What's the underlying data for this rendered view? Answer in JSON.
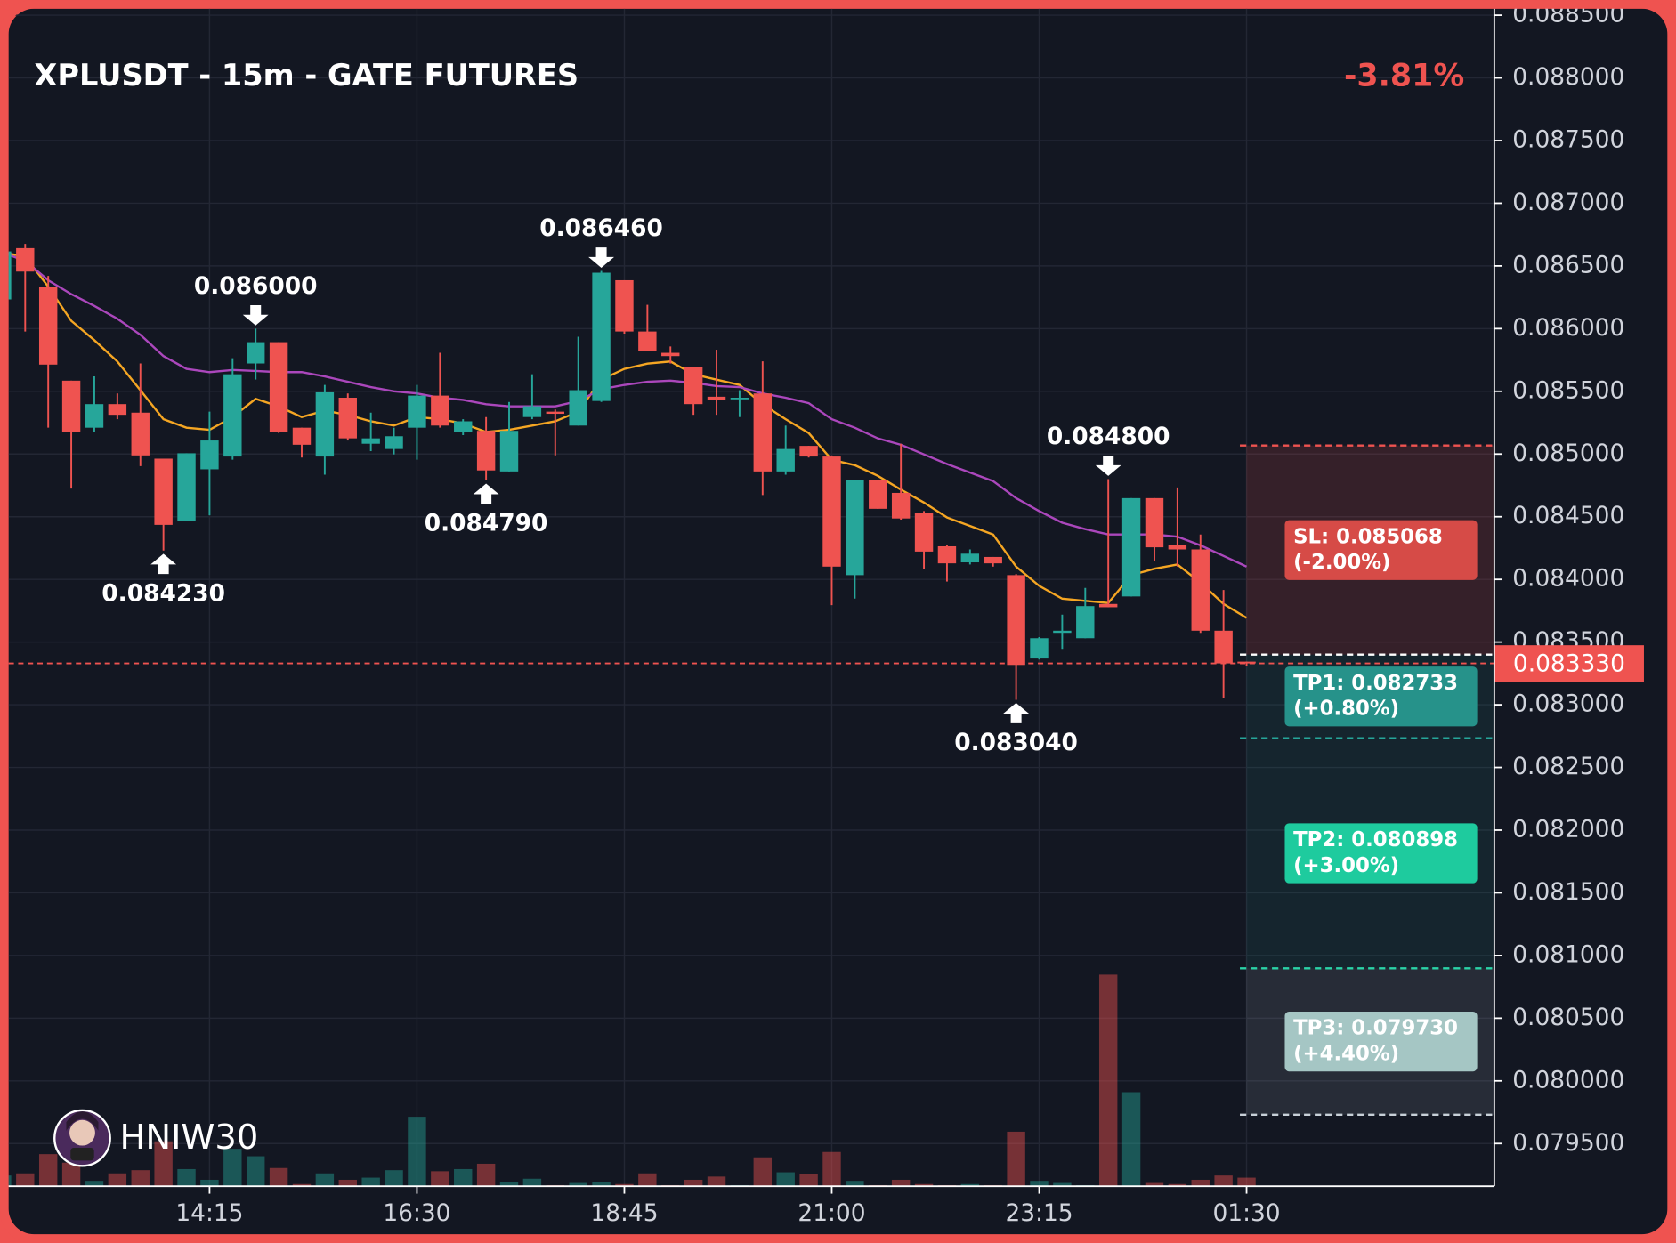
{
  "chart_data": {
    "type": "candlestick",
    "title": "XPLUSDT - 15m - GATE FUTURES",
    "change_label": "-3.81%",
    "watermark": "HNIW30",
    "grid": true,
    "colors": {
      "up": "#26a69a",
      "down": "#ef5350"
    },
    "categories": [
      null,
      null,
      null,
      null,
      null,
      null,
      null,
      null,
      null,
      "14:15",
      null,
      null,
      null,
      null,
      null,
      null,
      null,
      null,
      "16:30",
      null,
      null,
      null,
      null,
      null,
      null,
      null,
      null,
      "18:45",
      null,
      null,
      null,
      null,
      null,
      null,
      null,
      null,
      "21:00",
      null,
      null,
      null,
      null,
      null,
      null,
      null,
      null,
      "23:15",
      null,
      null,
      null,
      null,
      null,
      null,
      null,
      null,
      "01:30"
    ],
    "open": [
      0.086233,
      0.086642,
      0.086335,
      0.085585,
      0.08521,
      0.085398,
      0.08533,
      0.084963,
      0.084469,
      0.084878,
      0.08498,
      0.085722,
      0.085892,
      0.08521,
      0.08498,
      0.085449,
      0.085082,
      0.08504,
      0.08521,
      0.085466,
      0.085176,
      0.085185,
      0.084861,
      0.085295,
      0.085338,
      0.085227,
      0.085423,
      0.086386,
      0.085977,
      0.085807,
      0.085696,
      0.085457,
      0.08544,
      0.085483,
      0.084861,
      0.085065,
      0.08498,
      0.084034,
      0.08479,
      0.08469,
      0.084528,
      0.084264,
      0.084136,
      0.084179,
      0.084034,
      0.083369,
      0.083574,
      0.083531,
      0.083804,
      0.083864,
      0.084648,
      0.084273,
      0.084239,
      0.083591,
      0.083344
    ],
    "high": [
      0.086659,
      0.086676,
      0.08642,
      0.085585,
      0.085619,
      0.085483,
      0.085722,
      0.084963,
      0.085006,
      0.085338,
      0.085764,
      0.086,
      0.085892,
      0.08521,
      0.085551,
      0.085483,
      0.08533,
      0.08521,
      0.085551,
      0.085807,
      0.085278,
      0.085295,
      0.085415,
      0.085636,
      0.085355,
      0.085935,
      0.08646,
      0.086386,
      0.08619,
      0.085858,
      0.085696,
      0.085832,
      0.085509,
      0.085739,
      0.085227,
      0.085065,
      0.084989,
      0.084795,
      0.084795,
      0.085082,
      0.084545,
      0.084273,
      0.084239,
      0.084179,
      0.084043,
      0.08354,
      0.083719,
      0.083932,
      0.0848,
      0.084648,
      0.084648,
      0.084733,
      0.084358,
      0.083915,
      0.083344
    ],
    "low": [
      0.086233,
      0.085977,
      0.08521,
      0.084724,
      0.085176,
      0.085278,
      0.084903,
      0.08423,
      0.084469,
      0.084511,
      0.084955,
      0.085594,
      0.085168,
      0.084972,
      0.084835,
      0.085108,
      0.085023,
      0.084997,
      0.084955,
      0.08521,
      0.085151,
      0.08479,
      0.084861,
      0.085278,
      0.084989,
      0.085227,
      0.085415,
      0.08596,
      0.085824,
      0.085722,
      0.085313,
      0.085313,
      0.085295,
      0.084673,
      0.084835,
      0.084972,
      0.083795,
      0.083847,
      0.084563,
      0.084477,
      0.084085,
      0.083983,
      0.084119,
      0.084102,
      0.08304,
      0.083361,
      0.083446,
      0.083531,
      0.083778,
      0.083864,
      0.084145,
      0.084102,
      0.083574,
      0.08305,
      0.08331
    ],
    "close": [
      0.086616,
      0.086455,
      0.085713,
      0.085176,
      0.085398,
      0.085313,
      0.084989,
      0.084435,
      0.085006,
      0.085108,
      0.085636,
      0.085892,
      0.085176,
      0.085074,
      0.085492,
      0.085125,
      0.085125,
      0.085142,
      0.085466,
      0.085227,
      0.085261,
      0.084869,
      0.085185,
      0.085381,
      0.085321,
      0.085509,
      0.086446,
      0.085977,
      0.085824,
      0.085781,
      0.085398,
      0.085432,
      0.085449,
      0.084861,
      0.08504,
      0.08498,
      0.084102,
      0.08479,
      0.084563,
      0.084486,
      0.084222,
      0.084128,
      0.084205,
      0.084128,
      0.083318,
      0.083531,
      0.083591,
      0.083787,
      0.083778,
      0.084648,
      0.084256,
      0.084239,
      0.083591,
      0.08333,
      0.08333
    ],
    "volume": [
      10,
      12,
      30,
      22,
      5,
      12,
      15,
      42,
      16,
      6,
      35,
      28,
      17,
      2,
      12,
      6,
      8,
      15,
      65,
      14,
      16,
      21,
      4,
      7,
      1,
      3,
      4,
      2,
      12,
      1,
      6,
      9,
      1,
      27,
      13,
      11,
      32,
      5,
      1,
      6,
      2,
      1,
      2,
      1,
      51,
      5,
      3,
      1,
      198,
      88,
      3,
      2,
      6,
      10,
      8
    ],
    "moving_averages": [
      {
        "color": "#f5a623",
        "values": [
          0.086608,
          0.086574,
          0.086335,
          0.086062,
          0.085908,
          0.085738,
          0.085508,
          0.085278,
          0.08521,
          0.085193,
          0.085295,
          0.08544,
          0.08538,
          0.085295,
          0.085346,
          0.085312,
          0.085261,
          0.085227,
          0.085295,
          0.085278,
          0.085244,
          0.085176,
          0.085193,
          0.085227,
          0.085261,
          0.085338,
          0.085593,
          0.085679,
          0.085721,
          0.085738,
          0.085636,
          0.085593,
          0.085551,
          0.085397,
          0.085278,
          0.085167,
          0.084954,
          0.084911,
          0.084826,
          0.084716,
          0.084613,
          0.084494,
          0.084426,
          0.084358,
          0.084102,
          0.083949,
          0.083846,
          0.083829,
          0.083812,
          0.084034,
          0.084085,
          0.084119,
          0.083974,
          0.083804,
          0.083693
        ]
      },
      {
        "color": "#ab47bc",
        "values": [
          0.086608,
          0.08654,
          0.086386,
          0.086275,
          0.086181,
          0.086079,
          0.085951,
          0.085781,
          0.085679,
          0.085653,
          0.08567,
          0.085662,
          0.085653,
          0.085653,
          0.085619,
          0.085576,
          0.085534,
          0.0855,
          0.085483,
          0.085449,
          0.085432,
          0.085397,
          0.08538,
          0.08538,
          0.08538,
          0.085423,
          0.085517,
          0.085551,
          0.085576,
          0.085585,
          0.085568,
          0.085542,
          0.085534,
          0.085483,
          0.085449,
          0.085406,
          0.085278,
          0.08521,
          0.085125,
          0.085074,
          0.084997,
          0.08492,
          0.084852,
          0.084784,
          0.084648,
          0.084545,
          0.084452,
          0.084401,
          0.084358,
          0.084358,
          0.084358,
          0.084341,
          0.084272,
          0.084187,
          0.084102
        ]
      }
    ],
    "extremes": [
      {
        "value": 0.086,
        "label": "0.086000"
      },
      {
        "value": 0.08423,
        "label": "0.084230"
      },
      {
        "value": 0.08646,
        "label": "0.086460"
      },
      {
        "value": 0.08479,
        "label": "0.084790"
      },
      {
        "value": 0.0848,
        "label": "0.084800"
      },
      {
        "value": 0.08304,
        "label": "0.083040"
      }
    ],
    "last_price": {
      "value": 0.08333,
      "label": "0.083330"
    },
    "entry": 0.0834,
    "levels": [
      {
        "label": "SL: 0.085068",
        "note": "(-2.00%)",
        "value": 0.085068,
        "color": "#ef5350",
        "box_color": "#d64b47"
      },
      {
        "label": "TP1: 0.082733",
        "note": "(+0.80%)",
        "value": 0.082733,
        "color": "#26a69a",
        "box_color": "#26928a"
      },
      {
        "label": "TP2: 0.080898",
        "note": "(+3.00%)",
        "value": 0.080898,
        "color": "#2ad4a8",
        "box_color": "#1ecb9e"
      },
      {
        "label": "TP3: 0.079730",
        "note": "(+4.40%)",
        "value": 0.07973,
        "color": "#c8d0d8",
        "box_color": "#a5c6c4"
      }
    ],
    "ylim": [
      0.07916,
      0.08862
    ],
    "yticks": [
      {
        "value": 0.0795,
        "label": "0.079500"
      },
      {
        "value": 0.08,
        "label": "0.080000"
      },
      {
        "value": 0.0805,
        "label": "0.080500"
      },
      {
        "value": 0.081,
        "label": "0.081000"
      },
      {
        "value": 0.0815,
        "label": "0.081500"
      },
      {
        "value": 0.082,
        "label": "0.082000"
      },
      {
        "value": 0.0825,
        "label": "0.082500"
      },
      {
        "value": 0.083,
        "label": "0.083000"
      },
      {
        "value": 0.0835,
        "label": "0.083500"
      },
      {
        "value": 0.084,
        "label": "0.084000"
      },
      {
        "value": 0.0845,
        "label": "0.084500"
      },
      {
        "value": 0.085,
        "label": "0.085000"
      },
      {
        "value": 0.0855,
        "label": "0.085500"
      },
      {
        "value": 0.086,
        "label": "0.086000"
      },
      {
        "value": 0.0865,
        "label": "0.086500"
      },
      {
        "value": 0.087,
        "label": "0.087000"
      },
      {
        "value": 0.0875,
        "label": "0.087500"
      },
      {
        "value": 0.088,
        "label": "0.088000"
      },
      {
        "value": 0.0885,
        "label": "0.088500"
      }
    ]
  }
}
